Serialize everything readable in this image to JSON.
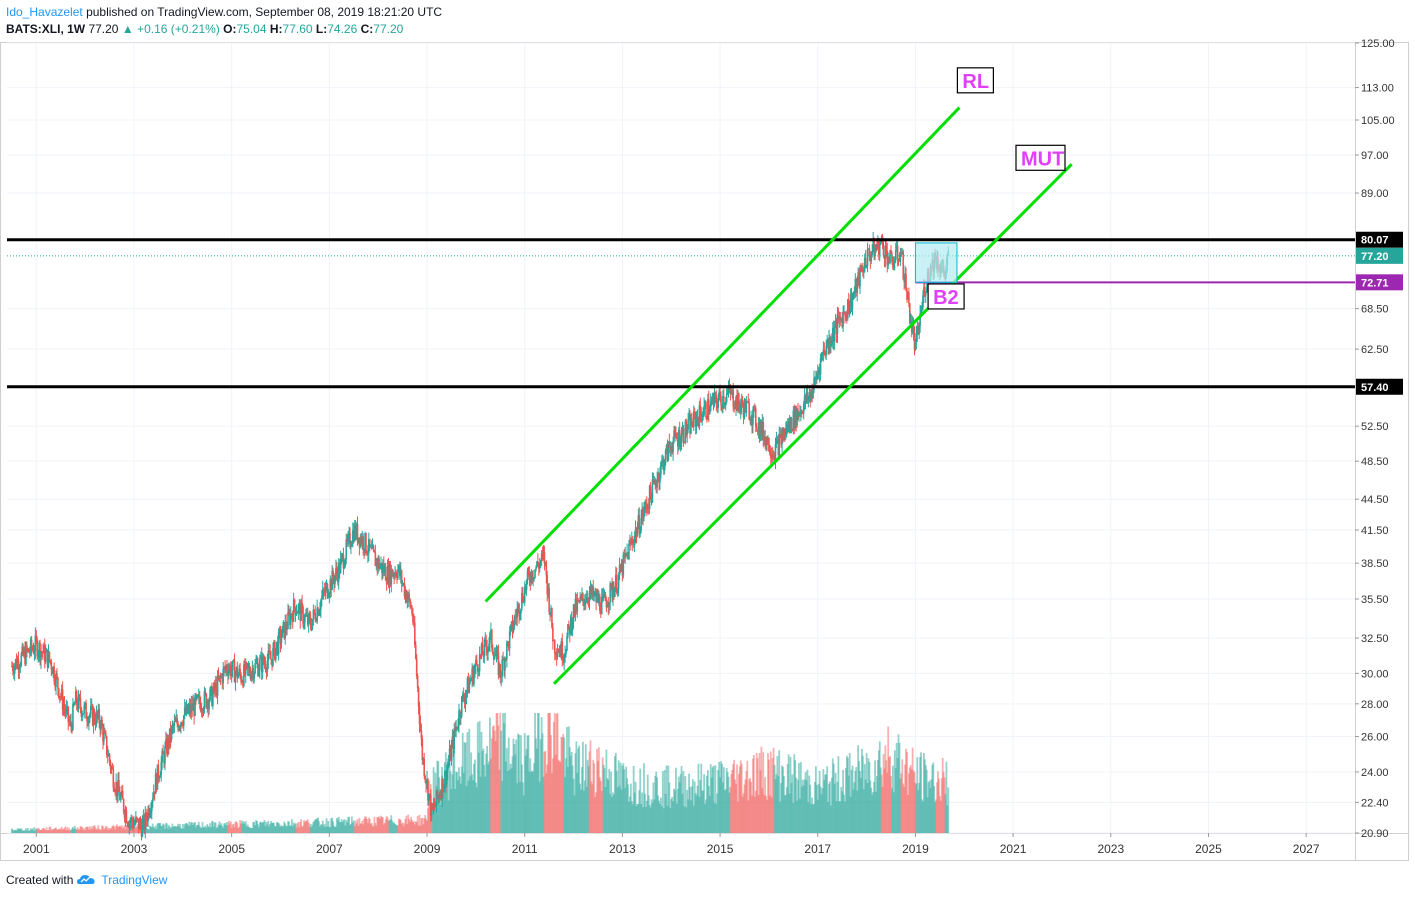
{
  "header": {
    "author": "Ido_Havazelet",
    "published_text": "published on TradingView.com, September 08, 2019 18:21:20 UTC",
    "symbol": "BATS:XLI, 1W",
    "last": "77.20",
    "change": "+0.16 (+0.21%)",
    "open_label": "O:",
    "open": "75.04",
    "high_label": "H:",
    "high": "77.60",
    "low_label": "L:",
    "low": "74.26",
    "close_label": "C:",
    "close": "77.20"
  },
  "footer": {
    "created_with": "Created with",
    "brand": "TradingView"
  },
  "colors": {
    "up": "#26a69a",
    "down": "#ef5350",
    "channel": "#00e000",
    "level": "#000000",
    "purple_line": "#9c27b0",
    "label_text": "#e040fb",
    "box_fill": "#b2ebf2",
    "box_border": "#00bcd4"
  },
  "chart_data": {
    "type": "line",
    "scale": "log",
    "timeframe": "1W",
    "x_ticks": [
      "2001",
      "2003",
      "2005",
      "2007",
      "2009",
      "2011",
      "2013",
      "2015",
      "2017",
      "2019",
      "2021",
      "2023",
      "2025",
      "2027"
    ],
    "y_ticks": [
      "125.00",
      "113.00",
      "105.00",
      "97.00",
      "89.00",
      "80.07",
      "77.20",
      "72.71",
      "68.50",
      "62.50",
      "57.40",
      "52.50",
      "48.50",
      "44.50",
      "41.50",
      "38.50",
      "35.50",
      "32.50",
      "30.00",
      "28.00",
      "26.00",
      "24.00",
      "22.40",
      "20.90"
    ],
    "ylim": [
      20.9,
      125.0
    ],
    "xlim": [
      2000.4,
      2028.0
    ],
    "series": [
      {
        "x": [
          2000.5,
          2001.0,
          2001.3,
          2001.7,
          2001.8,
          2002.0,
          2002.3,
          2002.6,
          2002.9,
          2003.2,
          2003.5,
          2003.8,
          2004.0,
          2004.3,
          2004.6,
          2004.9,
          2005.2,
          2005.5,
          2005.8,
          2006.0,
          2006.3,
          2006.6,
          2006.9,
          2007.2,
          2007.5,
          2007.7,
          2007.9,
          2008.2,
          2008.4,
          2008.7,
          2008.9,
          2009.1,
          2009.4,
          2009.7,
          2010.0,
          2010.3,
          2010.5,
          2010.8,
          2011.1,
          2011.4,
          2011.6,
          2011.8,
          2012.0,
          2012.3,
          2012.6,
          2012.9,
          2013.2,
          2013.5,
          2013.8,
          2014.0,
          2014.3,
          2014.6,
          2014.9,
          2015.2,
          2015.4,
          2015.6,
          2015.9,
          2016.1,
          2016.4,
          2016.7,
          2016.9,
          2017.1,
          2017.4,
          2017.7,
          2018.0,
          2018.3,
          2018.5,
          2018.7,
          2018.9,
          2019.0,
          2019.2,
          2019.4,
          2019.6,
          2019.68
        ],
        "values": [
          30.5,
          32.0,
          30.8,
          26.5,
          28.2,
          27.5,
          27.0,
          23.5,
          21.5,
          21.2,
          24.0,
          26.5,
          27.2,
          28.0,
          28.5,
          30.5,
          29.8,
          30.5,
          31.0,
          32.5,
          35.0,
          33.5,
          36.0,
          38.0,
          41.5,
          40.5,
          39.0,
          37.5,
          38.0,
          34.5,
          25.0,
          21.8,
          24.0,
          28.0,
          30.5,
          32.5,
          30.0,
          34.0,
          37.5,
          39.0,
          32.0,
          31.5,
          34.5,
          36.0,
          35.0,
          37.0,
          40.5,
          44.0,
          48.0,
          50.5,
          52.0,
          54.0,
          55.5,
          56.5,
          55.0,
          54.5,
          51.5,
          49.5,
          52.5,
          55.0,
          57.0,
          62.0,
          66.0,
          70.0,
          77.0,
          79.5,
          76.0,
          78.0,
          67.0,
          62.5,
          72.5,
          77.0,
          74.0,
          77.2
        ]
      },
      {
        "name": "volume",
        "x": [
          2009.0,
          2009.5,
          2010.0,
          2010.5,
          2011.0,
          2011.5,
          2012.0,
          2012.5,
          2013.0,
          2014.0,
          2015.0,
          2016.0,
          2017.0,
          2018.0,
          2018.5,
          2019.0,
          2019.5
        ],
        "values": [
          0.35,
          0.55,
          0.65,
          0.8,
          0.6,
          1.0,
          0.55,
          0.6,
          0.45,
          0.4,
          0.45,
          0.55,
          0.4,
          0.55,
          0.7,
          0.5,
          0.45
        ]
      }
    ],
    "annotations": [
      {
        "label": "RL",
        "x": 2019.9,
        "y": 115.0
      },
      {
        "label": "MUT",
        "x": 2021.1,
        "y": 96.5
      },
      {
        "label": "B2",
        "x": 2019.3,
        "y": 70.5
      }
    ],
    "levels": [
      80.07,
      57.4,
      72.71
    ],
    "last_price": 77.2,
    "channel_upper": [
      [
        2010.2,
        35.3
      ],
      [
        2019.9,
        108.0
      ]
    ],
    "channel_lower": [
      [
        2011.6,
        29.3
      ],
      [
        2022.2,
        95.0
      ]
    ],
    "range_box": {
      "x0": 2019.0,
      "x1": 2019.85,
      "y0": 72.71,
      "y1": 79.5
    }
  }
}
